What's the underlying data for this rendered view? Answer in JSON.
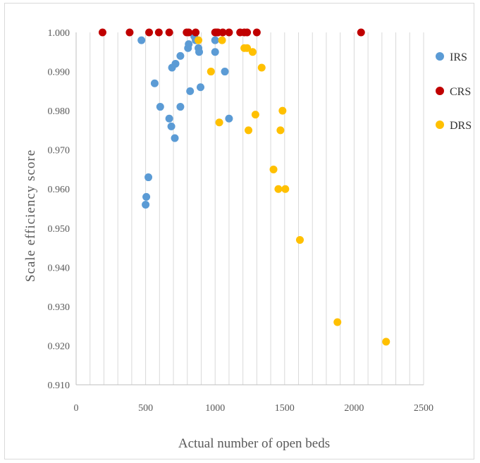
{
  "chart_data": {
    "type": "scatter",
    "title": "",
    "xlabel": "Actual number of open beds",
    "ylabel": "Scale efficiency score",
    "xlim": [
      0,
      2500
    ],
    "ylim": [
      0.91,
      1.0
    ],
    "x_ticks": [
      "0",
      "500",
      "1000",
      "1500",
      "2000",
      "2500"
    ],
    "y_ticks": [
      "0.910",
      "0.920",
      "0.930",
      "0.940",
      "0.950",
      "0.960",
      "0.970",
      "0.980",
      "0.990",
      "1.000"
    ],
    "grid": "vertical",
    "legend_position": "right",
    "series": [
      {
        "name": "IRS",
        "color": "#5b9bd5",
        "points": [
          [
            470,
            0.998
          ],
          [
            500,
            0.956
          ],
          [
            505,
            0.958
          ],
          [
            520,
            0.963
          ],
          [
            565,
            0.987
          ],
          [
            605,
            0.981
          ],
          [
            670,
            0.978
          ],
          [
            685,
            0.976
          ],
          [
            690,
            0.991
          ],
          [
            710,
            0.973
          ],
          [
            715,
            0.992
          ],
          [
            750,
            0.994
          ],
          [
            750,
            0.981
          ],
          [
            805,
            0.996
          ],
          [
            810,
            0.997
          ],
          [
            820,
            0.985
          ],
          [
            850,
            0.999
          ],
          [
            860,
            0.998
          ],
          [
            880,
            0.996
          ],
          [
            885,
            0.995
          ],
          [
            895,
            0.986
          ],
          [
            1000,
            0.998
          ],
          [
            1000,
            0.995
          ],
          [
            1070,
            0.99
          ],
          [
            1100,
            0.978
          ]
        ]
      },
      {
        "name": "CRS",
        "color": "#c00000",
        "points": [
          [
            190,
            1.0
          ],
          [
            385,
            1.0
          ],
          [
            525,
            1.0
          ],
          [
            595,
            1.0
          ],
          [
            670,
            1.0
          ],
          [
            795,
            1.0
          ],
          [
            810,
            1.0
          ],
          [
            860,
            1.0
          ],
          [
            1000,
            1.0
          ],
          [
            1010,
            1.0
          ],
          [
            1020,
            1.0
          ],
          [
            1055,
            1.0
          ],
          [
            1100,
            1.0
          ],
          [
            1180,
            1.0
          ],
          [
            1210,
            1.0
          ],
          [
            1230,
            1.0
          ],
          [
            1300,
            1.0
          ],
          [
            2050,
            1.0
          ]
        ]
      },
      {
        "name": "DRS",
        "color": "#ffc000",
        "points": [
          [
            880,
            0.998
          ],
          [
            970,
            0.99
          ],
          [
            1030,
            0.977
          ],
          [
            1050,
            0.998
          ],
          [
            1210,
            0.996
          ],
          [
            1230,
            0.996
          ],
          [
            1240,
            0.975
          ],
          [
            1270,
            0.995
          ],
          [
            1290,
            0.979
          ],
          [
            1335,
            0.991
          ],
          [
            1420,
            0.965
          ],
          [
            1455,
            0.96
          ],
          [
            1470,
            0.975
          ],
          [
            1485,
            0.98
          ],
          [
            1505,
            0.96
          ],
          [
            1610,
            0.947
          ],
          [
            1880,
            0.926
          ],
          [
            2230,
            0.921
          ]
        ]
      }
    ]
  }
}
